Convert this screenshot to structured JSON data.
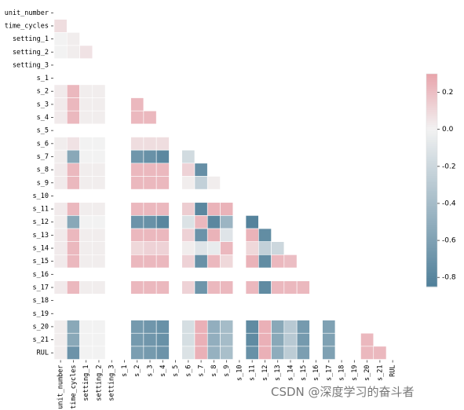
{
  "chart_data": {
    "type": "heatmap",
    "title": "",
    "xlabel": "",
    "ylabel": "",
    "mask": "upper-triangle-including-diagonal",
    "labels": [
      "unit_number",
      "time_cycles",
      "setting_1",
      "setting_2",
      "setting_3",
      "s_1",
      "s_2",
      "s_3",
      "s_4",
      "s_5",
      "s_6",
      "s_7",
      "s_8",
      "s_9",
      "s_10",
      "s_11",
      "s_12",
      "s_13",
      "s_14",
      "s_15",
      "s_16",
      "s_17",
      "s_18",
      "s_19",
      "s_20",
      "s_21",
      "RUL"
    ],
    "colorbar": {
      "range": [
        -0.85,
        0.3
      ],
      "ticks": [
        0.2,
        0.0,
        -0.2,
        -0.4,
        -0.6,
        -0.8
      ],
      "tick_labels": [
        "0.2",
        "0.0",
        "-0.2",
        "-0.4",
        "-0.6",
        "-0.8"
      ],
      "colormap": "diverging_palette(220, 10)",
      "neg_color": "#4f7f99",
      "mid_color": "#f2f2f2",
      "pos_color": "#e8a3ab"
    },
    "row_values": [
      [],
      [
        0.08
      ],
      [
        0.0,
        0.02
      ],
      [
        0.0,
        0.02,
        0.06
      ],
      [
        null,
        null,
        null,
        null
      ],
      [
        null,
        null,
        null,
        null,
        null
      ],
      [
        0.03,
        0.22,
        0.02,
        0.02,
        null,
        null
      ],
      [
        0.03,
        0.22,
        0.02,
        0.02,
        null,
        null,
        0.22
      ],
      [
        0.03,
        0.22,
        0.02,
        0.02,
        null,
        null,
        0.22,
        0.22
      ],
      [
        null,
        null,
        null,
        null,
        null,
        null,
        null,
        null,
        null
      ],
      [
        0.02,
        0.06,
        0.0,
        0.0,
        null,
        null,
        0.08,
        0.08,
        0.08,
        null
      ],
      [
        0.02,
        -0.55,
        0.0,
        0.0,
        null,
        null,
        -0.68,
        -0.72,
        -0.78,
        null,
        -0.17
      ],
      [
        0.03,
        0.22,
        0.02,
        0.02,
        null,
        null,
        0.22,
        0.22,
        0.22,
        null,
        0.12,
        -0.73
      ],
      [
        0.03,
        0.22,
        0.02,
        0.02,
        null,
        null,
        0.22,
        0.22,
        0.22,
        null,
        0.02,
        -0.25,
        0.02
      ],
      [
        null,
        null,
        null,
        null,
        null,
        null,
        null,
        null,
        null,
        null,
        null,
        null,
        null,
        null
      ],
      [
        0.03,
        0.22,
        0.02,
        0.02,
        null,
        null,
        0.22,
        0.22,
        0.22,
        null,
        0.14,
        -0.79,
        0.24,
        0.24,
        null
      ],
      [
        0.02,
        -0.55,
        0.0,
        0.0,
        null,
        null,
        -0.7,
        -0.72,
        -0.8,
        null,
        -0.12,
        0.22,
        -0.79,
        -0.45,
        null,
        -0.82
      ],
      [
        0.03,
        0.22,
        0.02,
        0.02,
        null,
        null,
        0.22,
        0.22,
        0.22,
        null,
        0.12,
        -0.7,
        0.24,
        -0.1,
        null,
        0.24,
        -0.75
      ],
      [
        0.03,
        0.22,
        0.02,
        0.02,
        null,
        null,
        0.1,
        0.12,
        0.12,
        null,
        0.02,
        -0.1,
        -0.05,
        0.22,
        null,
        0.1,
        -0.25,
        -0.2
      ],
      [
        0.03,
        0.22,
        0.02,
        0.02,
        null,
        null,
        0.22,
        0.22,
        0.22,
        null,
        0.12,
        -0.72,
        0.22,
        0.1,
        null,
        0.24,
        -0.75,
        0.22,
        0.2
      ],
      [
        null,
        null,
        null,
        null,
        null,
        null,
        null,
        null,
        null,
        null,
        null,
        null,
        null,
        null,
        null,
        null,
        null,
        null,
        null,
        null
      ],
      [
        0.03,
        0.22,
        0.02,
        0.02,
        null,
        null,
        0.22,
        0.22,
        0.22,
        null,
        0.12,
        -0.69,
        0.22,
        0.22,
        null,
        0.22,
        -0.76,
        0.22,
        0.22,
        0.22,
        null
      ],
      [
        null,
        null,
        null,
        null,
        null,
        null,
        null,
        null,
        null,
        null,
        null,
        null,
        null,
        null,
        null,
        null,
        null,
        null,
        null,
        null,
        null,
        null
      ],
      [
        null,
        null,
        null,
        null,
        null,
        null,
        null,
        null,
        null,
        null,
        null,
        null,
        null,
        null,
        null,
        null,
        null,
        null,
        null,
        null,
        null,
        null,
        null
      ],
      [
        0.02,
        -0.55,
        0.0,
        0.0,
        null,
        null,
        -0.65,
        -0.68,
        -0.72,
        null,
        -0.15,
        0.25,
        -0.5,
        -0.4,
        null,
        -0.76,
        0.25,
        -0.55,
        -0.3,
        -0.65,
        null,
        -0.6,
        null,
        null
      ],
      [
        0.02,
        -0.55,
        0.0,
        0.0,
        null,
        null,
        -0.65,
        -0.68,
        -0.72,
        null,
        -0.15,
        0.25,
        -0.5,
        -0.4,
        null,
        -0.76,
        0.25,
        -0.55,
        -0.3,
        -0.65,
        null,
        -0.6,
        null,
        null,
        0.22
      ],
      [
        0.02,
        -0.7,
        0.0,
        0.0,
        null,
        null,
        -0.62,
        -0.65,
        -0.7,
        null,
        -0.12,
        0.25,
        -0.48,
        -0.38,
        null,
        -0.72,
        0.25,
        -0.52,
        -0.28,
        -0.62,
        null,
        -0.6,
        null,
        null,
        0.22,
        0.22
      ]
    ]
  },
  "watermark": {
    "text": "CSDN @深度学习的奋斗者"
  }
}
